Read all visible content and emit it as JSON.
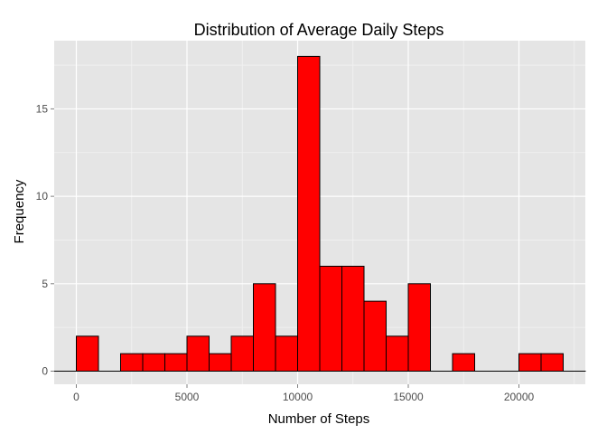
{
  "chart_data": {
    "type": "bar",
    "title": "Distribution of Average Daily Steps",
    "xlabel": "Number of Steps",
    "ylabel": "Frequency",
    "xlim": [
      -1000,
      23000
    ],
    "ylim": [
      0,
      18
    ],
    "bin_width": 1000,
    "x_ticks": [
      0,
      5000,
      10000,
      15000,
      20000
    ],
    "y_ticks": [
      0,
      5,
      10,
      15
    ],
    "bins": [
      {
        "x0": -1000,
        "x1": 0,
        "count": 0
      },
      {
        "x0": 0,
        "x1": 1000,
        "count": 2
      },
      {
        "x0": 1000,
        "x1": 2000,
        "count": 0
      },
      {
        "x0": 2000,
        "x1": 3000,
        "count": 1
      },
      {
        "x0": 3000,
        "x1": 4000,
        "count": 1
      },
      {
        "x0": 4000,
        "x1": 5000,
        "count": 1
      },
      {
        "x0": 5000,
        "x1": 6000,
        "count": 2
      },
      {
        "x0": 6000,
        "x1": 7000,
        "count": 1
      },
      {
        "x0": 7000,
        "x1": 8000,
        "count": 2
      },
      {
        "x0": 8000,
        "x1": 9000,
        "count": 5
      },
      {
        "x0": 9000,
        "x1": 10000,
        "count": 2
      },
      {
        "x0": 10000,
        "x1": 11000,
        "count": 18
      },
      {
        "x0": 11000,
        "x1": 12000,
        "count": 6
      },
      {
        "x0": 12000,
        "x1": 13000,
        "count": 6
      },
      {
        "x0": 13000,
        "x1": 14000,
        "count": 4
      },
      {
        "x0": 14000,
        "x1": 15000,
        "count": 2
      },
      {
        "x0": 15000,
        "x1": 16000,
        "count": 5
      },
      {
        "x0": 16000,
        "x1": 17000,
        "count": 0
      },
      {
        "x0": 17000,
        "x1": 18000,
        "count": 1
      },
      {
        "x0": 18000,
        "x1": 19000,
        "count": 0
      },
      {
        "x0": 19000,
        "x1": 20000,
        "count": 0
      },
      {
        "x0": 20000,
        "x1": 21000,
        "count": 1
      },
      {
        "x0": 21000,
        "x1": 22000,
        "count": 1
      },
      {
        "x0": 22000,
        "x1": 23000,
        "count": 0
      }
    ],
    "grid": true,
    "legend": "none",
    "colors": {
      "bar_fill": "#ff0000",
      "bar_stroke": "#000000",
      "panel_bg": "#e5e5e5",
      "grid_major": "#ffffff",
      "grid_minor": "#f2f2f2"
    }
  }
}
